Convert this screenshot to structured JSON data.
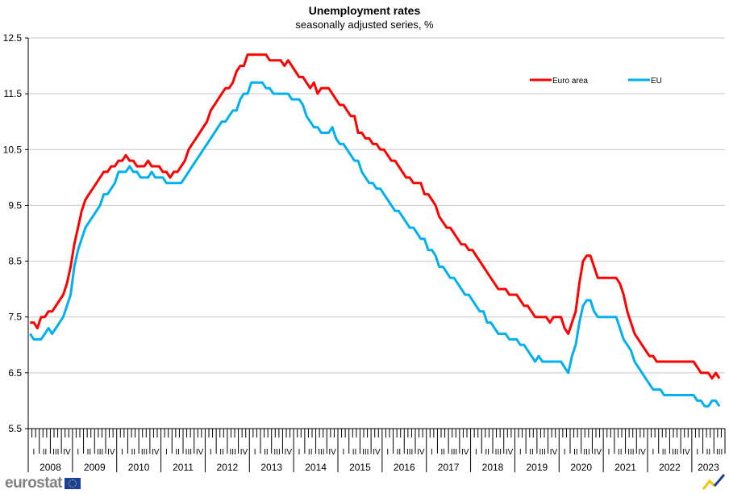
{
  "chart_data": {
    "type": "line",
    "title": "Unemployment rates",
    "subtitle": "seasonally adjusted series, %",
    "xlabel": "",
    "ylabel": "",
    "ylim": [
      5.5,
      12.5
    ],
    "yticks": [
      "12.5",
      "11.5",
      "10.5",
      "9.5",
      "8.5",
      "7.5",
      "6.5",
      "5.5"
    ],
    "x_start": "2008-01",
    "x_end_axis": "2023-09",
    "frequency": "monthly",
    "years": [
      "2008",
      "2009",
      "2010",
      "2011",
      "2012",
      "2013",
      "2014",
      "2015",
      "2016",
      "2017",
      "2018",
      "2019",
      "2020",
      "2021",
      "2022",
      "2023"
    ],
    "quarters": [
      "I",
      "II",
      "III",
      "IV"
    ],
    "grid": true,
    "legend_position": "top-right",
    "series": [
      {
        "name": "Euro area",
        "color": "#ff0000",
        "values": [
          7.4,
          7.4,
          7.3,
          7.5,
          7.5,
          7.6,
          7.6,
          7.7,
          7.8,
          7.9,
          8.1,
          8.4,
          8.8,
          9.1,
          9.4,
          9.6,
          9.7,
          9.8,
          9.9,
          10.0,
          10.1,
          10.1,
          10.2,
          10.2,
          10.3,
          10.3,
          10.4,
          10.3,
          10.3,
          10.2,
          10.2,
          10.2,
          10.3,
          10.2,
          10.2,
          10.2,
          10.1,
          10.1,
          10.0,
          10.1,
          10.1,
          10.2,
          10.3,
          10.5,
          10.6,
          10.7,
          10.8,
          10.9,
          11.0,
          11.2,
          11.3,
          11.4,
          11.5,
          11.6,
          11.6,
          11.7,
          11.9,
          12.0,
          12.0,
          12.2,
          12.2,
          12.2,
          12.2,
          12.2,
          12.2,
          12.1,
          12.1,
          12.1,
          12.1,
          12.0,
          12.1,
          12.0,
          11.9,
          11.8,
          11.8,
          11.7,
          11.6,
          11.7,
          11.5,
          11.6,
          11.6,
          11.6,
          11.5,
          11.4,
          11.3,
          11.3,
          11.2,
          11.1,
          11.1,
          10.8,
          10.8,
          10.7,
          10.7,
          10.6,
          10.6,
          10.5,
          10.5,
          10.4,
          10.3,
          10.3,
          10.2,
          10.1,
          10.0,
          10.0,
          9.9,
          9.9,
          9.9,
          9.7,
          9.7,
          9.6,
          9.5,
          9.3,
          9.2,
          9.1,
          9.1,
          9.0,
          8.9,
          8.8,
          8.8,
          8.7,
          8.7,
          8.6,
          8.5,
          8.4,
          8.3,
          8.2,
          8.1,
          8.0,
          8.0,
          8.0,
          7.9,
          7.9,
          7.9,
          7.8,
          7.7,
          7.7,
          7.6,
          7.5,
          7.5,
          7.5,
          7.5,
          7.4,
          7.5,
          7.5,
          7.5,
          7.3,
          7.2,
          7.4,
          7.6,
          8.1,
          8.5,
          8.6,
          8.6,
          8.4,
          8.2,
          8.2,
          8.2,
          8.2,
          8.2,
          8.2,
          8.1,
          7.9,
          7.6,
          7.4,
          7.2,
          7.1,
          7.0,
          6.9,
          6.8,
          6.8,
          6.7,
          6.7,
          6.7,
          6.7,
          6.7,
          6.7,
          6.7,
          6.7,
          6.7,
          6.7,
          6.7,
          6.6,
          6.5,
          6.5,
          6.5,
          6.4,
          6.5,
          6.4
        ]
      },
      {
        "name": "EU",
        "color": "#00b0f0",
        "values": [
          7.2,
          7.1,
          7.1,
          7.1,
          7.2,
          7.3,
          7.2,
          7.3,
          7.4,
          7.5,
          7.7,
          7.9,
          8.4,
          8.7,
          8.9,
          9.1,
          9.2,
          9.3,
          9.4,
          9.5,
          9.7,
          9.7,
          9.8,
          9.9,
          10.1,
          10.1,
          10.1,
          10.2,
          10.1,
          10.1,
          10.0,
          10.0,
          10.0,
          10.1,
          10.0,
          10.0,
          10.0,
          9.9,
          9.9,
          9.9,
          9.9,
          9.9,
          10.0,
          10.1,
          10.2,
          10.3,
          10.4,
          10.5,
          10.6,
          10.7,
          10.8,
          10.9,
          11.0,
          11.0,
          11.1,
          11.2,
          11.2,
          11.4,
          11.5,
          11.5,
          11.7,
          11.7,
          11.7,
          11.7,
          11.6,
          11.6,
          11.5,
          11.5,
          11.5,
          11.5,
          11.5,
          11.4,
          11.4,
          11.4,
          11.3,
          11.1,
          11.0,
          10.9,
          10.9,
          10.8,
          10.8,
          10.8,
          10.9,
          10.7,
          10.6,
          10.6,
          10.5,
          10.4,
          10.3,
          10.3,
          10.1,
          10.0,
          9.9,
          9.9,
          9.8,
          9.8,
          9.7,
          9.6,
          9.5,
          9.4,
          9.4,
          9.3,
          9.2,
          9.1,
          9.1,
          9.0,
          8.9,
          8.9,
          8.7,
          8.7,
          8.6,
          8.4,
          8.4,
          8.3,
          8.2,
          8.2,
          8.1,
          8.0,
          7.9,
          7.9,
          7.8,
          7.7,
          7.6,
          7.6,
          7.4,
          7.4,
          7.3,
          7.2,
          7.2,
          7.2,
          7.1,
          7.1,
          7.1,
          7.0,
          7.0,
          6.9,
          6.8,
          6.7,
          6.8,
          6.7,
          6.7,
          6.7,
          6.7,
          6.7,
          6.7,
          6.6,
          6.5,
          6.8,
          7.0,
          7.4,
          7.7,
          7.8,
          7.8,
          7.6,
          7.5,
          7.5,
          7.5,
          7.5,
          7.5,
          7.5,
          7.3,
          7.1,
          7.0,
          6.9,
          6.7,
          6.6,
          6.5,
          6.4,
          6.3,
          6.2,
          6.2,
          6.2,
          6.1,
          6.1,
          6.1,
          6.1,
          6.1,
          6.1,
          6.1,
          6.1,
          6.1,
          6.0,
          6.0,
          5.9,
          5.9,
          6.0,
          6.0,
          5.9
        ]
      }
    ]
  },
  "footer": {
    "logo_text": "eurostat"
  }
}
